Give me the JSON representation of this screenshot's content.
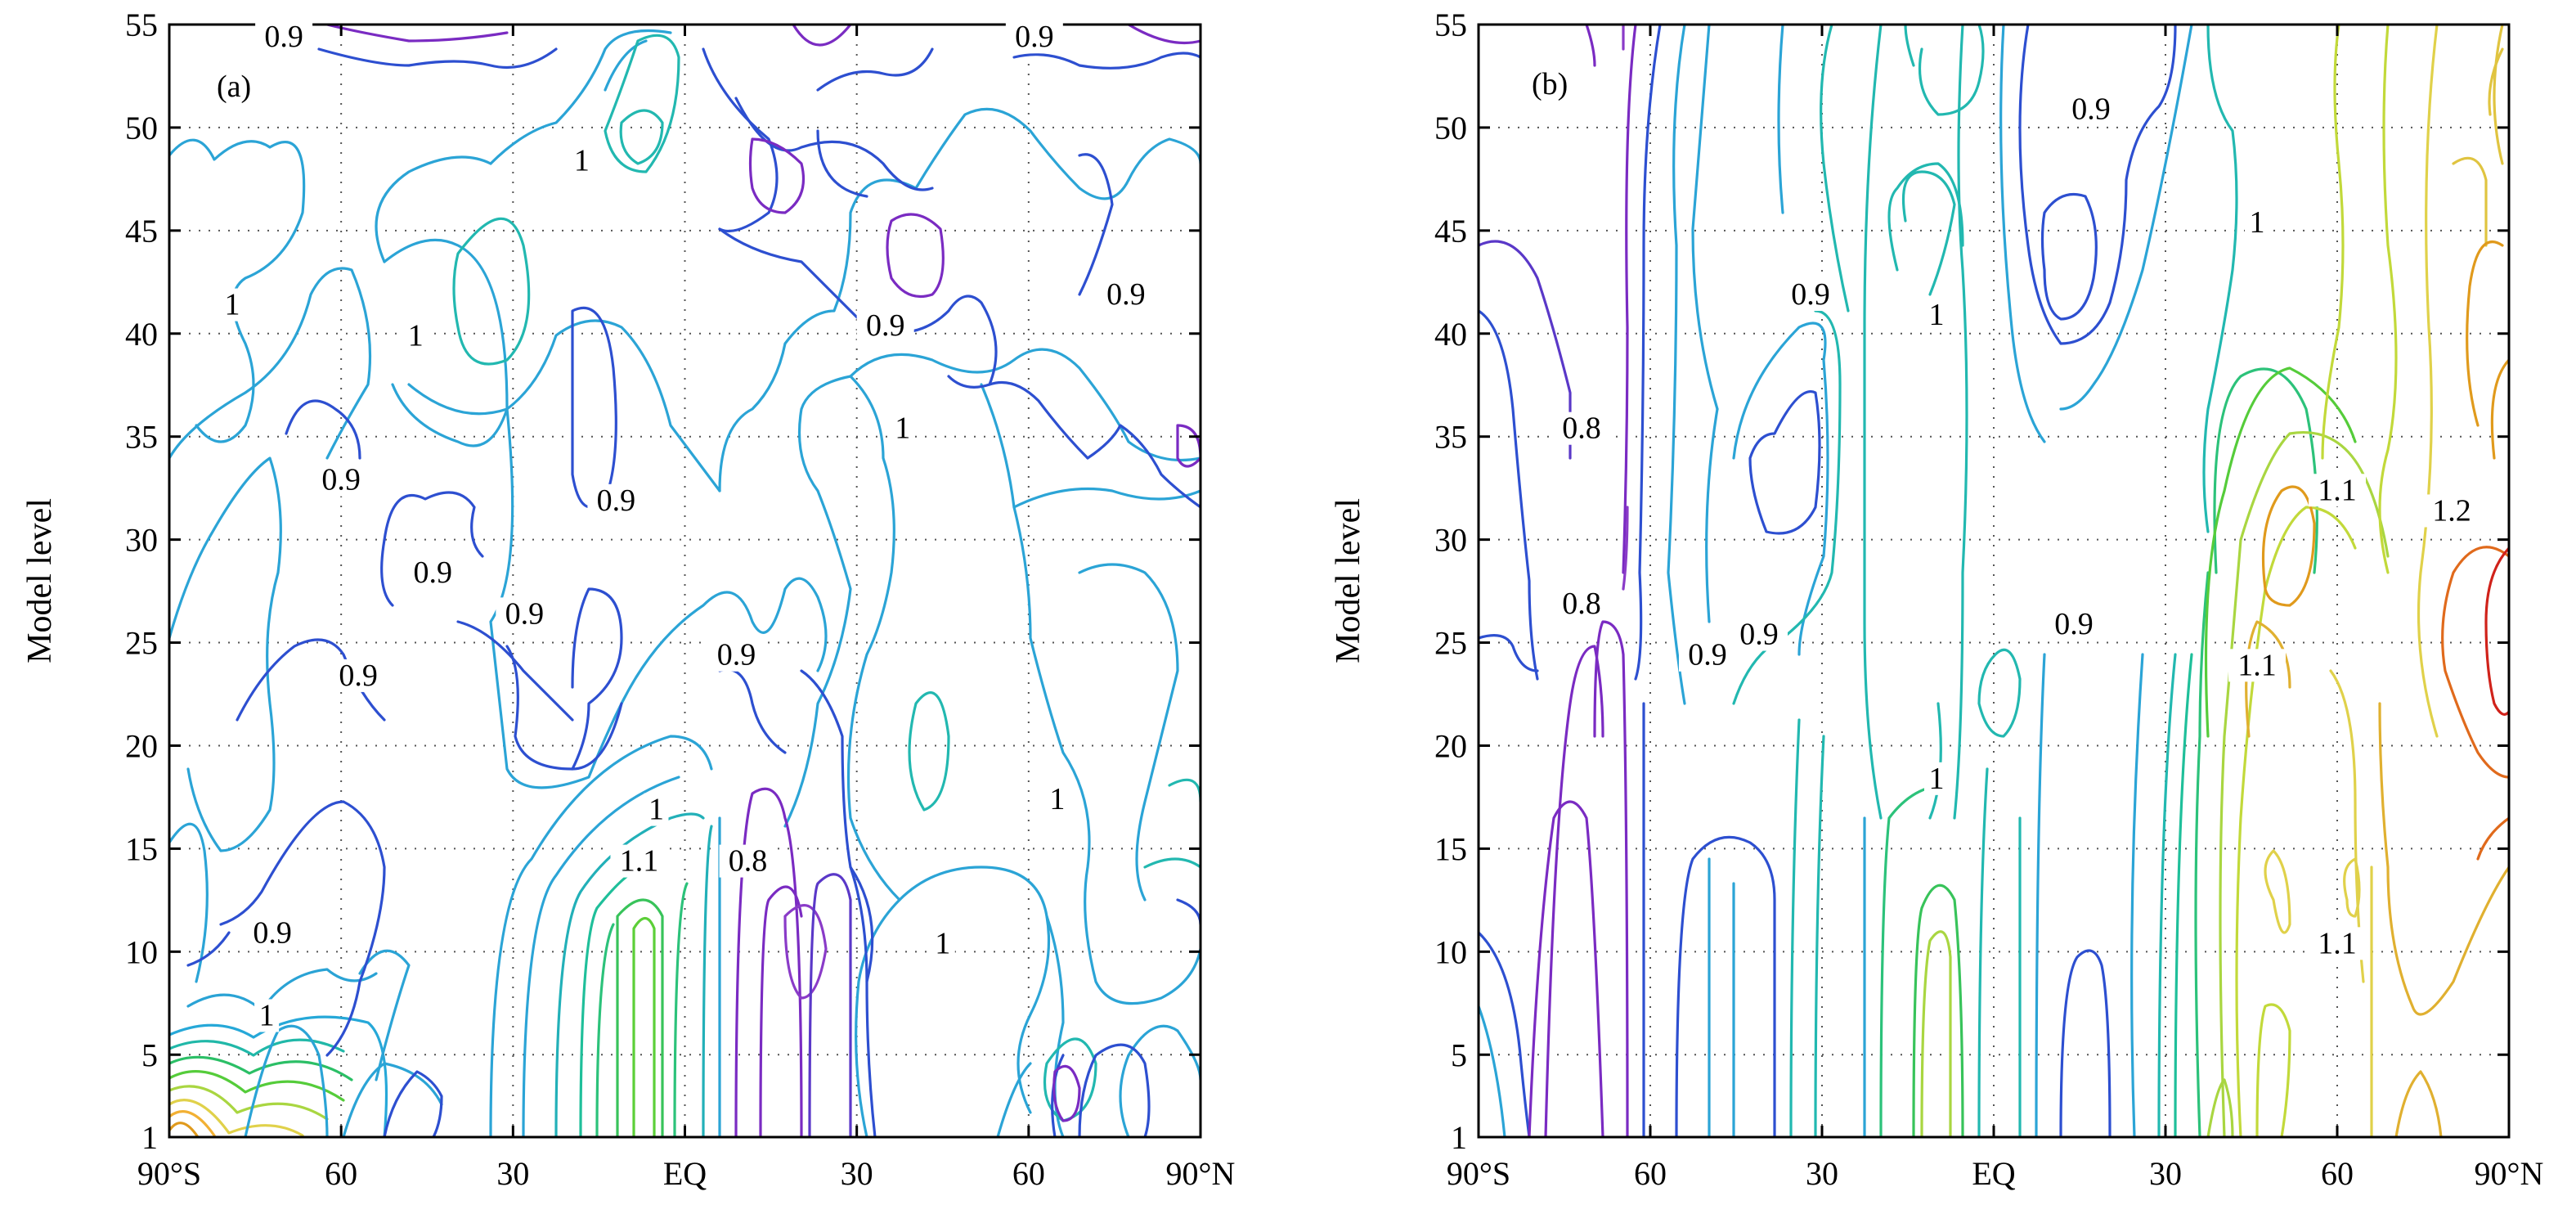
{
  "chart_data": [
    {
      "type": "contour",
      "panel_label": "(a)",
      "xlabel": "",
      "ylabel": "Model level",
      "xlim": [
        -90,
        90
      ],
      "ylim": [
        1,
        55
      ],
      "grid": true,
      "x_ticks": [
        {
          "value": -90,
          "label": "90°S"
        },
        {
          "value": -60,
          "label": "60"
        },
        {
          "value": -30,
          "label": "30"
        },
        {
          "value": 0,
          "label": "EQ"
        },
        {
          "value": 30,
          "label": "30"
        },
        {
          "value": 60,
          "label": "60"
        },
        {
          "value": 90,
          "label": "90°N"
        }
      ],
      "y_ticks": [
        {
          "value": 1,
          "label": "1"
        },
        {
          "value": 5,
          "label": "5"
        },
        {
          "value": 10,
          "label": "10"
        },
        {
          "value": 15,
          "label": "15"
        },
        {
          "value": 20,
          "label": "20"
        },
        {
          "value": 25,
          "label": "25"
        },
        {
          "value": 30,
          "label": "30"
        },
        {
          "value": 35,
          "label": "35"
        },
        {
          "value": 40,
          "label": "40"
        },
        {
          "value": 45,
          "label": "45"
        },
        {
          "value": 50,
          "label": "50"
        },
        {
          "value": 55,
          "label": "55"
        }
      ],
      "contour_labels": [
        {
          "text": "0.9",
          "lat": -70,
          "level": 54
        },
        {
          "text": "1",
          "lat": -18,
          "level": 48
        },
        {
          "text": "1",
          "lat": -79,
          "level": 41
        },
        {
          "text": "1",
          "lat": -47,
          "level": 39.5
        },
        {
          "text": "0.9",
          "lat": -60,
          "level": 32.5
        },
        {
          "text": "0.9",
          "lat": -12,
          "level": 31.5
        },
        {
          "text": "0.9",
          "lat": -44,
          "level": 28
        },
        {
          "text": "0.9",
          "lat": -28,
          "level": 26
        },
        {
          "text": "0.9",
          "lat": -57,
          "level": 23
        },
        {
          "text": "0.9",
          "lat": 9,
          "level": 24
        },
        {
          "text": "1",
          "lat": -5,
          "level": 16.5
        },
        {
          "text": "1.1",
          "lat": -8,
          "level": 14
        },
        {
          "text": "0.8",
          "lat": 11,
          "level": 14
        },
        {
          "text": "0.9",
          "lat": -72,
          "level": 10.5
        },
        {
          "text": "1",
          "lat": -73,
          "level": 6.5
        },
        {
          "text": "1",
          "lat": 45,
          "level": 10
        },
        {
          "text": "1",
          "lat": 38,
          "level": 35
        },
        {
          "text": "0.9",
          "lat": 35,
          "level": 40
        },
        {
          "text": "0.9",
          "lat": 77,
          "level": 41.5
        },
        {
          "text": "0.9",
          "lat": 61,
          "level": 54
        },
        {
          "text": "1",
          "lat": 65,
          "level": 17
        }
      ]
    },
    {
      "type": "contour",
      "panel_label": "(b)",
      "xlabel": "",
      "ylabel": "Model level",
      "xlim": [
        -90,
        90
      ],
      "ylim": [
        1,
        55
      ],
      "grid": true,
      "x_ticks": [
        {
          "value": -90,
          "label": "90°S"
        },
        {
          "value": -60,
          "label": "60"
        },
        {
          "value": -30,
          "label": "30"
        },
        {
          "value": 0,
          "label": "EQ"
        },
        {
          "value": 30,
          "label": "30"
        },
        {
          "value": 60,
          "label": "60"
        },
        {
          "value": 90,
          "label": "90°N"
        }
      ],
      "y_ticks": [
        {
          "value": 1,
          "label": "1"
        },
        {
          "value": 5,
          "label": "5"
        },
        {
          "value": 10,
          "label": "10"
        },
        {
          "value": 15,
          "label": "15"
        },
        {
          "value": 20,
          "label": "20"
        },
        {
          "value": 25,
          "label": "25"
        },
        {
          "value": 30,
          "label": "30"
        },
        {
          "value": 35,
          "label": "35"
        },
        {
          "value": 40,
          "label": "40"
        },
        {
          "value": 45,
          "label": "45"
        },
        {
          "value": 50,
          "label": "50"
        },
        {
          "value": 55,
          "label": "55"
        }
      ],
      "contour_labels": [
        {
          "text": "0.9",
          "lat": 17,
          "level": 50.5
        },
        {
          "text": "1",
          "lat": 46,
          "level": 45
        },
        {
          "text": "0.9",
          "lat": -32,
          "level": 41.5
        },
        {
          "text": "1",
          "lat": -10,
          "level": 40.5
        },
        {
          "text": "0.8",
          "lat": -72,
          "level": 35
        },
        {
          "text": "1.1",
          "lat": 60,
          "level": 32
        },
        {
          "text": "1.2",
          "lat": 80,
          "level": 31
        },
        {
          "text": "0.8",
          "lat": -72,
          "level": 26.5
        },
        {
          "text": "0.9",
          "lat": -50,
          "level": 24
        },
        {
          "text": "0.9",
          "lat": -41,
          "level": 25
        },
        {
          "text": "0.9",
          "lat": 14,
          "level": 25.5
        },
        {
          "text": "1.1",
          "lat": 46,
          "level": 23.5
        },
        {
          "text": "1",
          "lat": -10,
          "level": 18
        },
        {
          "text": "1.1",
          "lat": 60,
          "level": 10
        }
      ]
    }
  ]
}
